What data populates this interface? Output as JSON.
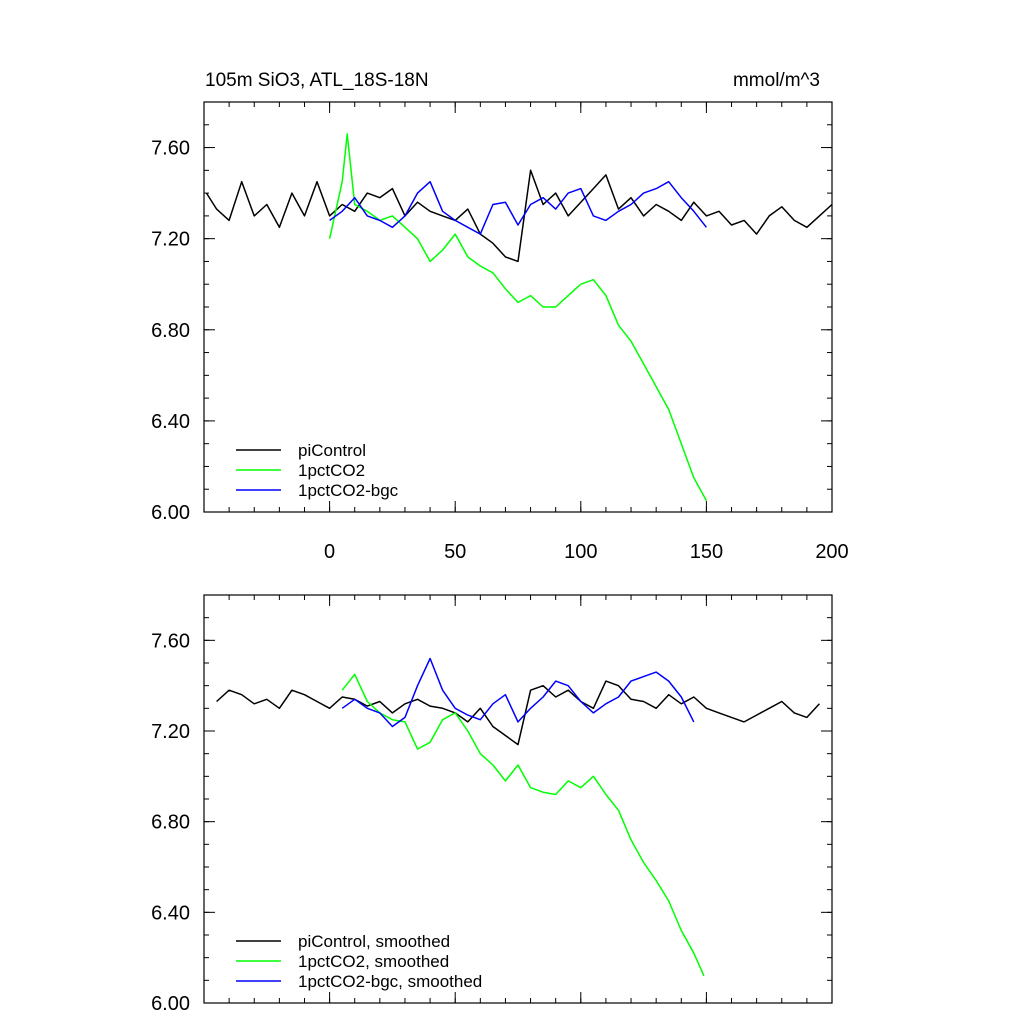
{
  "chart_data": [
    {
      "type": "line",
      "title": "105m SiO3, ATL_18S-18N",
      "units": "mmol/m^3",
      "xlim": [
        -50,
        200
      ],
      "ylim": [
        6.0,
        7.8
      ],
      "xticks": [
        0,
        50,
        100,
        150,
        200
      ],
      "yticks": [
        6.0,
        6.4,
        6.8,
        7.2,
        7.6
      ],
      "xtick_labels": [
        "0",
        "50",
        "100",
        "150",
        "200"
      ],
      "ytick_labels": [
        "6.00",
        "6.40",
        "6.80",
        "7.20",
        "7.60"
      ],
      "grid": false,
      "legend_position": "bottom-left",
      "series": [
        {
          "name": "piControl",
          "color": "#000000",
          "x": [
            -49,
            -45,
            -40,
            -35,
            -30,
            -25,
            -20,
            -15,
            -10,
            -5,
            0,
            5,
            10,
            15,
            20,
            25,
            30,
            35,
            40,
            45,
            50,
            55,
            60,
            65,
            70,
            75,
            80,
            85,
            90,
            95,
            100,
            105,
            110,
            115,
            120,
            125,
            130,
            135,
            140,
            145,
            150,
            155,
            160,
            165,
            170,
            175,
            180,
            185,
            190,
            195,
            200
          ],
          "y": [
            7.4,
            7.33,
            7.28,
            7.45,
            7.3,
            7.35,
            7.25,
            7.4,
            7.3,
            7.45,
            7.3,
            7.35,
            7.32,
            7.4,
            7.38,
            7.42,
            7.3,
            7.36,
            7.32,
            7.3,
            7.28,
            7.33,
            7.22,
            7.18,
            7.12,
            7.1,
            7.5,
            7.35,
            7.4,
            7.3,
            7.36,
            7.42,
            7.48,
            7.33,
            7.38,
            7.3,
            7.35,
            7.32,
            7.28,
            7.36,
            7.3,
            7.32,
            7.26,
            7.28,
            7.22,
            7.3,
            7.34,
            7.28,
            7.25,
            7.3,
            7.35
          ]
        },
        {
          "name": "1pctCO2",
          "color": "#00ff00",
          "x": [
            0,
            5,
            7,
            10,
            15,
            20,
            25,
            30,
            35,
            40,
            45,
            50,
            55,
            60,
            65,
            70,
            75,
            80,
            85,
            90,
            95,
            100,
            105,
            110,
            115,
            120,
            125,
            130,
            135,
            140,
            145,
            150
          ],
          "y": [
            7.2,
            7.45,
            7.66,
            7.35,
            7.32,
            7.28,
            7.3,
            7.25,
            7.2,
            7.1,
            7.15,
            7.22,
            7.12,
            7.08,
            7.05,
            6.98,
            6.92,
            6.95,
            6.9,
            6.9,
            6.95,
            7.0,
            7.02,
            6.95,
            6.82,
            6.75,
            6.65,
            6.55,
            6.45,
            6.3,
            6.15,
            6.05
          ]
        },
        {
          "name": "1pctCO2-bgc",
          "color": "#0000ff",
          "x": [
            0,
            5,
            10,
            15,
            20,
            25,
            30,
            35,
            40,
            45,
            50,
            55,
            60,
            65,
            70,
            75,
            80,
            85,
            90,
            95,
            100,
            105,
            110,
            115,
            120,
            125,
            130,
            135,
            140,
            145,
            150
          ],
          "y": [
            7.28,
            7.32,
            7.38,
            7.3,
            7.28,
            7.25,
            7.3,
            7.4,
            7.45,
            7.32,
            7.28,
            7.25,
            7.22,
            7.35,
            7.36,
            7.26,
            7.35,
            7.38,
            7.33,
            7.4,
            7.42,
            7.3,
            7.28,
            7.32,
            7.35,
            7.4,
            7.42,
            7.45,
            7.38,
            7.32,
            7.25
          ]
        }
      ]
    },
    {
      "type": "line",
      "title": "",
      "units": "",
      "xlim": [
        -50,
        200
      ],
      "ylim": [
        6.0,
        7.8
      ],
      "xticks": [
        0,
        50,
        100,
        150,
        200
      ],
      "yticks": [
        6.0,
        6.4,
        6.8,
        7.2,
        7.6
      ],
      "xtick_labels": [],
      "ytick_labels": [
        "6.00",
        "6.40",
        "6.80",
        "7.20",
        "7.60"
      ],
      "grid": false,
      "legend_position": "bottom-left",
      "series": [
        {
          "name": "piControl, smoothed",
          "color": "#000000",
          "x": [
            -45,
            -40,
            -35,
            -30,
            -25,
            -20,
            -15,
            -10,
            -5,
            0,
            5,
            10,
            15,
            20,
            25,
            30,
            35,
            40,
            45,
            50,
            55,
            60,
            65,
            70,
            75,
            80,
            85,
            90,
            95,
            100,
            105,
            110,
            115,
            120,
            125,
            130,
            135,
            140,
            145,
            150,
            155,
            160,
            165,
            170,
            175,
            180,
            185,
            190,
            195
          ],
          "y": [
            7.33,
            7.38,
            7.36,
            7.32,
            7.34,
            7.3,
            7.38,
            7.36,
            7.33,
            7.3,
            7.35,
            7.34,
            7.31,
            7.33,
            7.28,
            7.32,
            7.34,
            7.31,
            7.3,
            7.28,
            7.24,
            7.3,
            7.22,
            7.18,
            7.14,
            7.38,
            7.4,
            7.35,
            7.38,
            7.33,
            7.3,
            7.42,
            7.4,
            7.34,
            7.33,
            7.3,
            7.36,
            7.32,
            7.35,
            7.3,
            7.28,
            7.26,
            7.24,
            7.27,
            7.3,
            7.33,
            7.28,
            7.26,
            7.32
          ]
        },
        {
          "name": "1pctCO2, smoothed",
          "color": "#00ff00",
          "x": [
            5,
            10,
            15,
            20,
            25,
            30,
            35,
            40,
            45,
            50,
            55,
            60,
            65,
            70,
            75,
            80,
            85,
            90,
            95,
            100,
            105,
            110,
            115,
            120,
            125,
            130,
            135,
            140,
            145,
            149
          ],
          "y": [
            7.38,
            7.45,
            7.33,
            7.28,
            7.25,
            7.24,
            7.12,
            7.15,
            7.25,
            7.28,
            7.2,
            7.1,
            7.05,
            6.98,
            7.05,
            6.95,
            6.93,
            6.92,
            6.98,
            6.95,
            7.0,
            6.92,
            6.85,
            6.72,
            6.62,
            6.54,
            6.45,
            6.32,
            6.22,
            6.12
          ]
        },
        {
          "name": "1pctCO2-bgc, smoothed",
          "color": "#0000ff",
          "x": [
            5,
            10,
            15,
            20,
            25,
            30,
            35,
            40,
            45,
            50,
            55,
            60,
            65,
            70,
            75,
            80,
            85,
            90,
            95,
            100,
            105,
            110,
            115,
            120,
            125,
            130,
            135,
            140,
            145
          ],
          "y": [
            7.3,
            7.34,
            7.3,
            7.28,
            7.22,
            7.26,
            7.4,
            7.52,
            7.38,
            7.3,
            7.27,
            7.25,
            7.32,
            7.36,
            7.24,
            7.3,
            7.35,
            7.42,
            7.4,
            7.33,
            7.28,
            7.32,
            7.35,
            7.42,
            7.44,
            7.46,
            7.42,
            7.35,
            7.24
          ]
        }
      ]
    }
  ]
}
